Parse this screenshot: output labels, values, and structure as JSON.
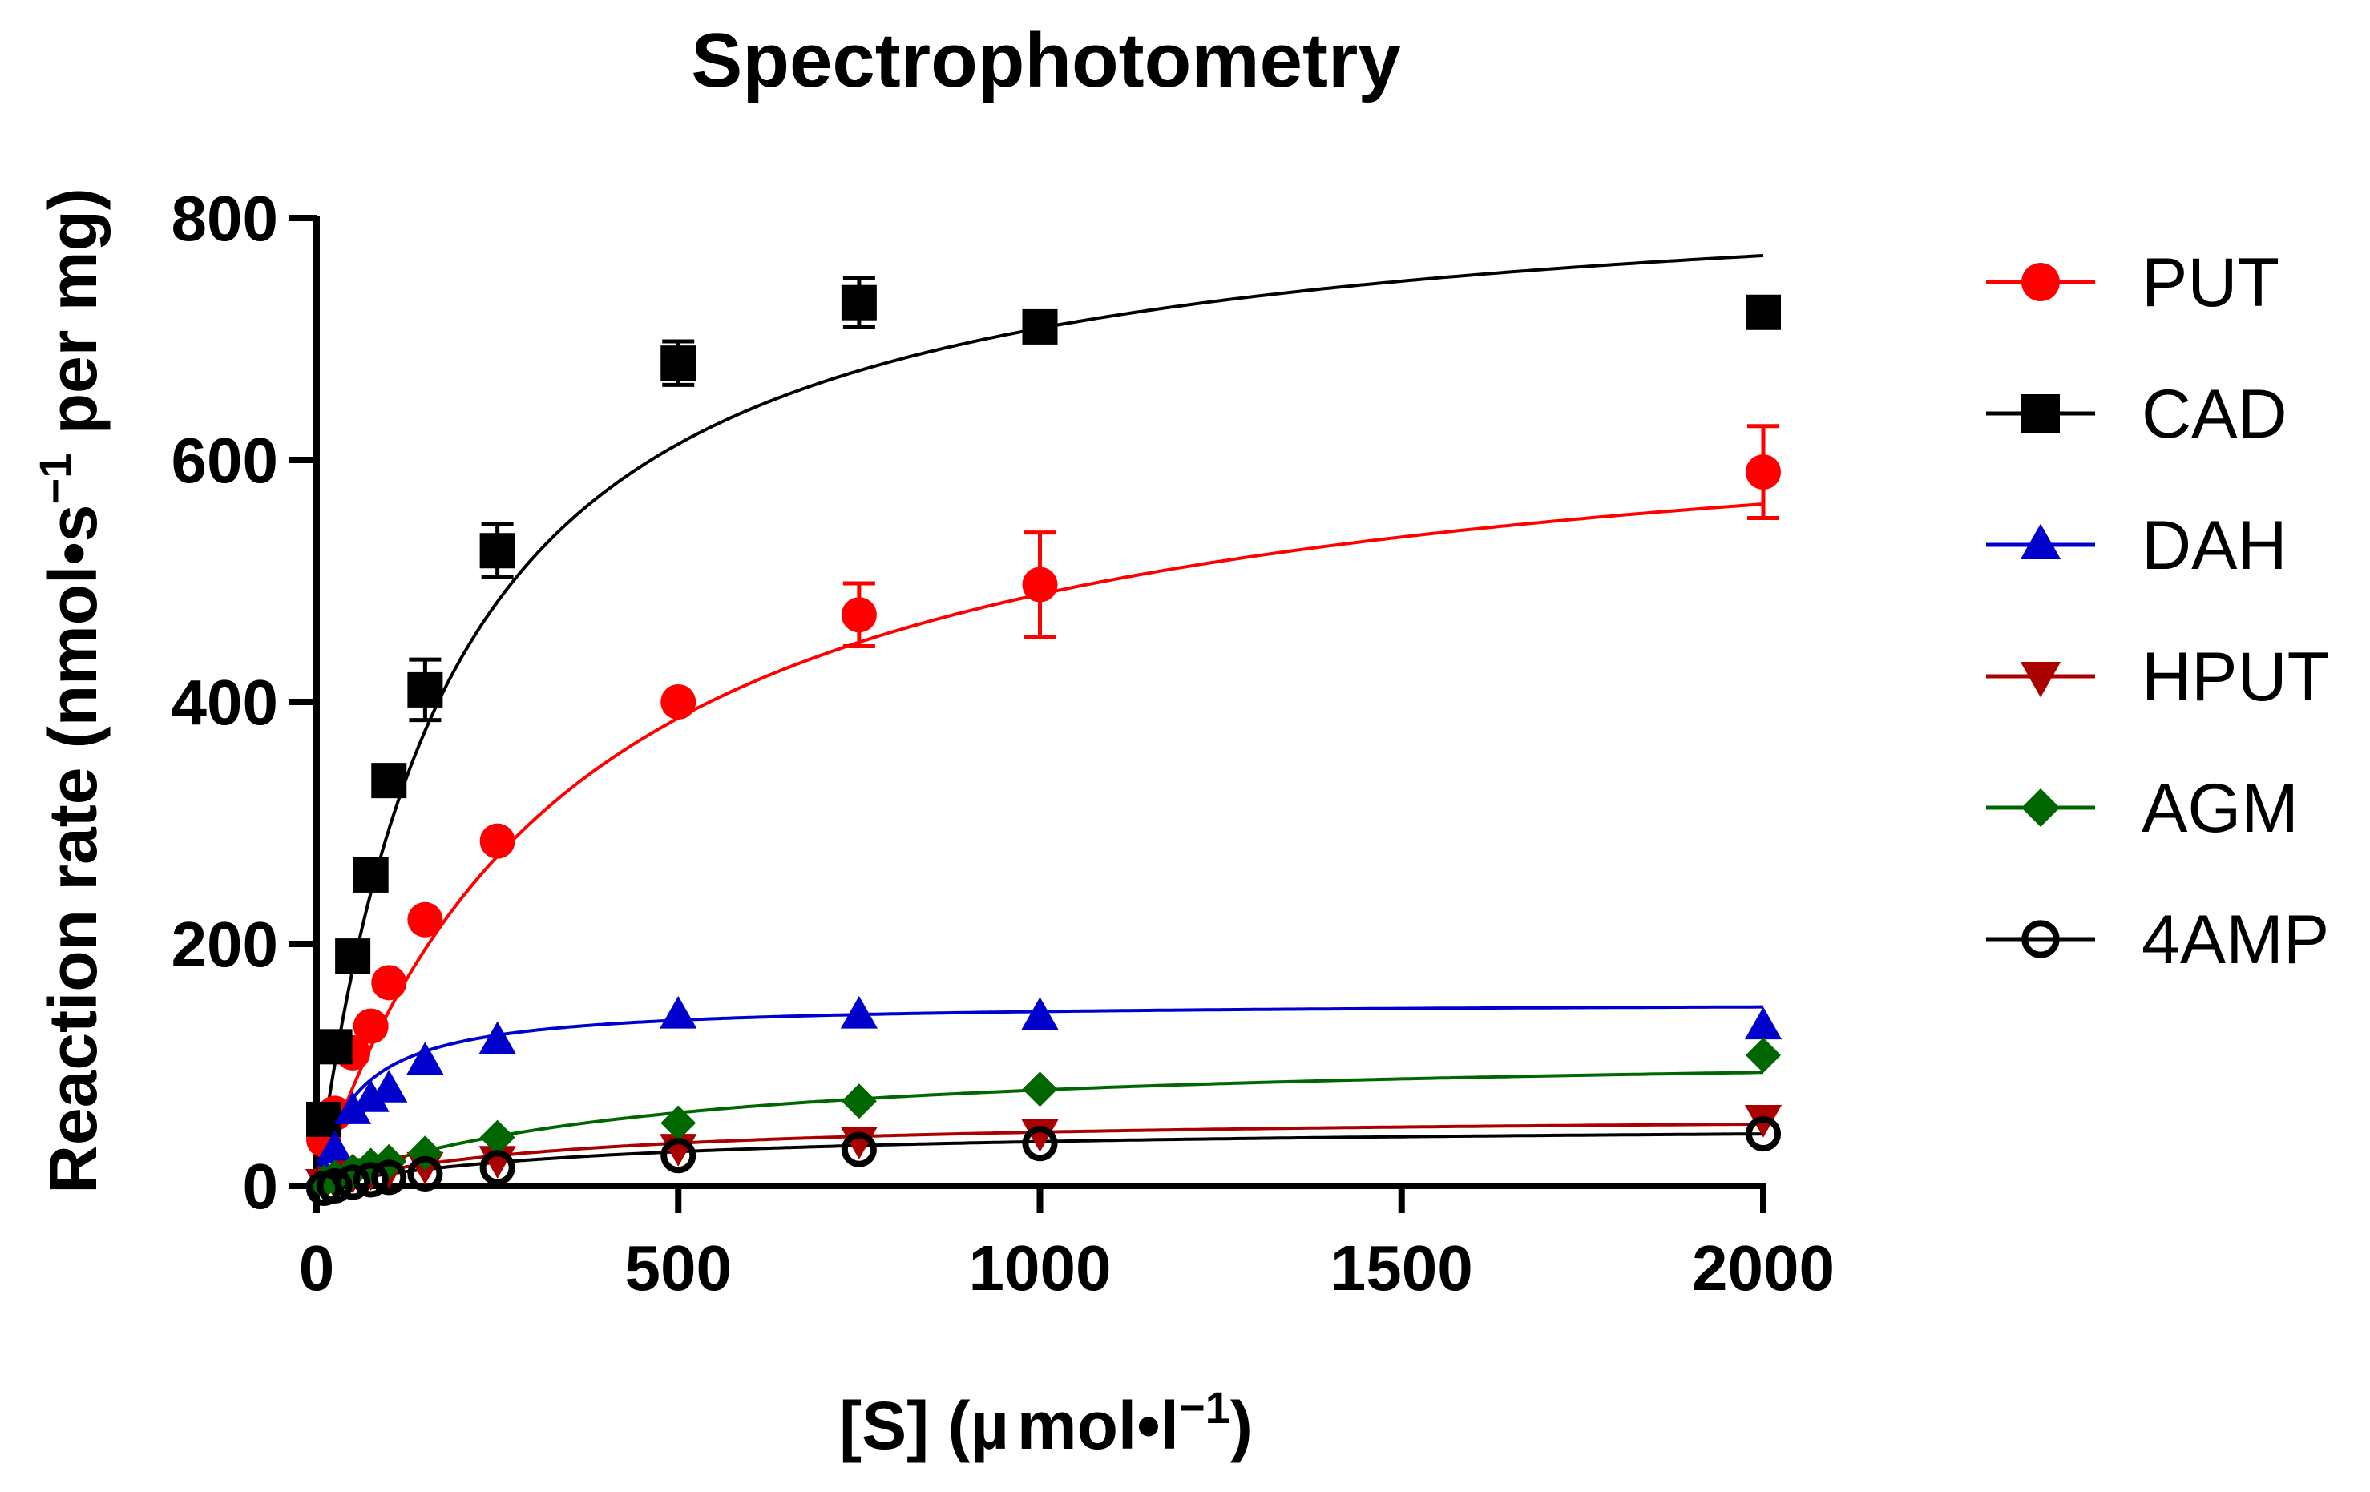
{
  "chart_data": {
    "type": "scatter",
    "title": "Spectrophotometry",
    "xlabel": "[S] (µmol•l⁻¹)",
    "xlabel_parts": {
      "main": "[S] (",
      "mu": "µ",
      "unit": "mol•l",
      "sup": "−1",
      "end": ")"
    },
    "ylabel": "Reaction rate (nmol•s⁻¹ per mg)",
    "ylabel_parts": {
      "main": "Reaction rate (nmol•s",
      "sup": "−1",
      "end": " per mg)"
    },
    "xlim": [
      0,
      2000
    ],
    "ylim": [
      0,
      800
    ],
    "xticks": [
      0,
      500,
      1000,
      1500,
      2000
    ],
    "xtick_labels": [
      "0",
      "500",
      "1000",
      "1500",
      "2000"
    ],
    "yticks": [
      0,
      200,
      400,
      600,
      800
    ],
    "ytick_labels": [
      "0",
      "200",
      "400",
      "600",
      "800"
    ],
    "legend_position": "right",
    "series": [
      {
        "name": "PUT",
        "color": "#ff0000",
        "marker": "circle-filled",
        "x": [
          10,
          25,
          50,
          75,
          100,
          150,
          250,
          500,
          750,
          1000,
          2000
        ],
        "y": [
          38,
          60,
          110,
          132,
          168,
          220,
          285,
          400,
          472,
          497,
          590
        ],
        "err": [
          0,
          0,
          0,
          0,
          0,
          0,
          0,
          0,
          26,
          43,
          38
        ],
        "fit": {
          "vmax": 665,
          "km": 360
        }
      },
      {
        "name": "CAD",
        "color": "#000000",
        "marker": "square-filled",
        "x": [
          10,
          25,
          50,
          75,
          100,
          150,
          250,
          500,
          750,
          1000,
          2000
        ],
        "y": [
          55,
          115,
          190,
          257,
          335,
          410,
          525,
          680,
          730,
          710,
          722
        ],
        "err": [
          0,
          0,
          0,
          0,
          0,
          25,
          22,
          18,
          20,
          12,
          0
        ],
        "fit": {
          "vmax": 840,
          "km": 185
        }
      },
      {
        "name": "DAH",
        "color": "#0000cc",
        "marker": "triangle-up",
        "x": [
          10,
          25,
          50,
          75,
          100,
          150,
          250,
          500,
          750,
          1000,
          2000
        ],
        "y": [
          10,
          30,
          62,
          72,
          80,
          103,
          120,
          141,
          141,
          140,
          132
        ],
        "err": [
          0,
          0,
          0,
          0,
          0,
          0,
          0,
          0,
          0,
          0,
          0
        ],
        "fit": {
          "vmax": 152,
          "km": 55
        }
      },
      {
        "name": "HPUT",
        "color": "#aa0000",
        "marker": "triangle-down",
        "x": [
          10,
          25,
          50,
          75,
          100,
          150,
          250,
          500,
          750,
          1000,
          2000
        ],
        "y": [
          3,
          5,
          10,
          12,
          14,
          17,
          22,
          32,
          38,
          44,
          56
        ],
        "err": [
          0,
          0,
          0,
          0,
          0,
          0,
          0,
          0,
          0,
          0,
          0
        ],
        "fit": {
          "vmax": 60,
          "km": 350
        }
      },
      {
        "name": "AGM",
        "color": "#006600",
        "marker": "diamond-filled",
        "x": [
          10,
          25,
          50,
          75,
          100,
          150,
          250,
          500,
          750,
          1000,
          2000
        ],
        "y": [
          3,
          7,
          12,
          17,
          20,
          27,
          40,
          52,
          70,
          80,
          108
        ],
        "err": [
          0,
          0,
          0,
          0,
          0,
          0,
          0,
          0,
          0,
          0,
          0
        ],
        "fit": {
          "vmax": 115,
          "km": 450
        }
      },
      {
        "name": "4AMP",
        "color": "#000000",
        "marker": "circle-open",
        "x": [
          10,
          25,
          50,
          75,
          100,
          150,
          250,
          500,
          750,
          1000,
          2000
        ],
        "y": [
          -2,
          0,
          3,
          5,
          7,
          10,
          15,
          25,
          30,
          35,
          43
        ],
        "err": [
          0,
          0,
          0,
          0,
          0,
          0,
          0,
          0,
          0,
          0,
          0
        ],
        "fit": {
          "vmax": 52,
          "km": 420
        }
      }
    ]
  }
}
